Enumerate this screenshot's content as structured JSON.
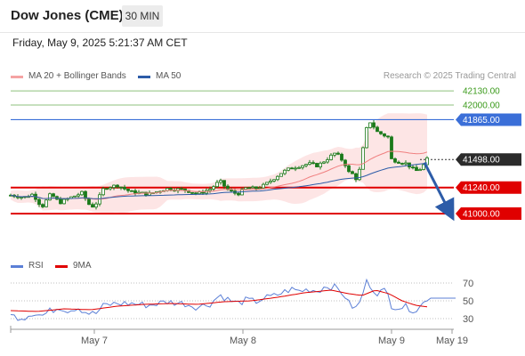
{
  "header": {
    "title": "Dow Jones (CME)",
    "timeframe": "30 MIN"
  },
  "date_text": "Friday, May 9, 2025 5:21:37 AM CET",
  "legend": {
    "ma20": "MA 20 + Bollinger Bands",
    "ma50": "MA 50",
    "credit": "Research © 2025 Trading Central"
  },
  "rsi_legend": {
    "rsi": "RSI",
    "ma9": "9MA"
  },
  "colors": {
    "ma20": "#f08080",
    "ma50": "#2d5ca8",
    "bb_fill": "#fde0e0",
    "support": "#e00000",
    "resistance": "#3b6fd8",
    "target_green": "#8ec07c",
    "green_text": "#3a9a1a",
    "candle": "#1a7a1a",
    "rsi": "#5b7fd6",
    "rsi_ma": "#e00000",
    "arrow": "#2d5ca8"
  },
  "chart_data": {
    "type": "candlestick",
    "ylim": [
      40820,
      42180
    ],
    "x_labels": [
      "May 7",
      "May 8",
      "May 9",
      "May 19"
    ],
    "levels": [
      {
        "label": "42130.00",
        "value": 42130,
        "kind": "target"
      },
      {
        "label": "42000.00",
        "value": 42000,
        "kind": "target"
      },
      {
        "label": "41865.00",
        "value": 41865,
        "kind": "resistance"
      },
      {
        "label": "41498.00",
        "value": 41498,
        "kind": "last"
      },
      {
        "label": "41240.00",
        "value": 41240,
        "kind": "support"
      },
      {
        "label": "41000.00",
        "value": 41000,
        "kind": "support"
      }
    ],
    "anchors": [
      [
        0,
        41170
      ],
      [
        15,
        41150
      ],
      [
        25,
        41180
      ],
      [
        35,
        41060
      ],
      [
        45,
        41180
      ],
      [
        55,
        41100
      ],
      [
        65,
        41140
      ],
      [
        80,
        41190
      ],
      [
        90,
        41060
      ],
      [
        95,
        41080
      ],
      [
        105,
        41240
      ],
      [
        120,
        41260
      ],
      [
        135,
        41200
      ],
      [
        155,
        41180
      ],
      [
        175,
        41230
      ],
      [
        195,
        41220
      ],
      [
        210,
        41180
      ],
      [
        225,
        41230
      ],
      [
        235,
        41300
      ],
      [
        245,
        41210
      ],
      [
        255,
        41180
      ],
      [
        265,
        41240
      ],
      [
        275,
        41230
      ],
      [
        285,
        41260
      ],
      [
        295,
        41320
      ],
      [
        305,
        41380
      ],
      [
        315,
        41420
      ],
      [
        325,
        41440
      ],
      [
        335,
        41460
      ],
      [
        345,
        41440
      ],
      [
        355,
        41500
      ],
      [
        365,
        41560
      ],
      [
        375,
        41470
      ],
      [
        380,
        41380
      ],
      [
        385,
        41360
      ],
      [
        390,
        41300
      ],
      [
        395,
        41550
      ],
      [
        400,
        41780
      ],
      [
        405,
        41860
      ],
      [
        410,
        41760
      ],
      [
        420,
        41720
      ],
      [
        425,
        41700
      ],
      [
        428,
        41500
      ],
      [
        435,
        41480
      ],
      [
        445,
        41460
      ],
      [
        455,
        41390
      ],
      [
        462,
        41420
      ],
      [
        468,
        41500
      ]
    ],
    "rsi": {
      "levels": [
        70,
        50,
        30
      ],
      "ylim": [
        20,
        80
      ],
      "anchors": [
        [
          0,
          33
        ],
        [
          15,
          31
        ],
        [
          25,
          37
        ],
        [
          35,
          33
        ],
        [
          45,
          39
        ],
        [
          55,
          43
        ],
        [
          65,
          39
        ],
        [
          75,
          43
        ],
        [
          85,
          37
        ],
        [
          95,
          35
        ],
        [
          105,
          45
        ],
        [
          120,
          47
        ],
        [
          135,
          47
        ],
        [
          155,
          45
        ],
        [
          175,
          49
        ],
        [
          195,
          47
        ],
        [
          210,
          43
        ],
        [
          225,
          47
        ],
        [
          235,
          57
        ],
        [
          245,
          51
        ],
        [
          255,
          47
        ],
        [
          265,
          51
        ],
        [
          275,
          49
        ],
        [
          285,
          53
        ],
        [
          295,
          55
        ],
        [
          305,
          59
        ],
        [
          315,
          63
        ],
        [
          325,
          61
        ],
        [
          335,
          63
        ],
        [
          345,
          61
        ],
        [
          355,
          67
        ],
        [
          365,
          65
        ],
        [
          375,
          57
        ],
        [
          380,
          47
        ],
        [
          385,
          43
        ],
        [
          390,
          41
        ],
        [
          395,
          57
        ],
        [
          400,
          71
        ],
        [
          405,
          67
        ],
        [
          410,
          59
        ],
        [
          420,
          61
        ],
        [
          425,
          55
        ],
        [
          428,
          45
        ],
        [
          435,
          43
        ],
        [
          445,
          43
        ],
        [
          455,
          39
        ],
        [
          462,
          45
        ],
        [
          468,
          53
        ],
        [
          500,
          53
        ]
      ],
      "ma_anchors": [
        [
          0,
          39
        ],
        [
          30,
          38
        ],
        [
          60,
          41
        ],
        [
          90,
          40
        ],
        [
          120,
          44
        ],
        [
          150,
          46
        ],
        [
          180,
          47
        ],
        [
          210,
          46
        ],
        [
          240,
          49
        ],
        [
          270,
          50
        ],
        [
          300,
          54
        ],
        [
          330,
          59
        ],
        [
          360,
          62
        ],
        [
          380,
          58
        ],
        [
          395,
          56
        ],
        [
          410,
          62
        ],
        [
          425,
          58
        ],
        [
          440,
          50
        ],
        [
          455,
          45
        ],
        [
          470,
          43
        ]
      ]
    }
  }
}
